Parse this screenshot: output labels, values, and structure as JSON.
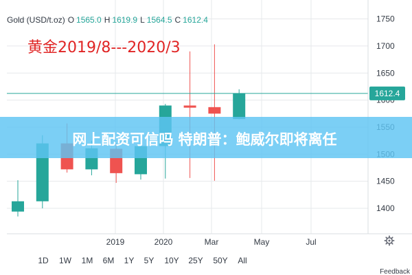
{
  "chart_data": {
    "type": "candlestick",
    "symbol": "Gold (USD/t.oz)",
    "ohlc_legend": {
      "o_label": "O",
      "o_value": "1565.0",
      "h_label": "H",
      "h_value": "1619.9",
      "l_label": "L",
      "l_value": "1564.5",
      "c_label": "C",
      "c_value": "1612.4"
    },
    "annotation": "黄金2019/8---2020/3",
    "x_tick_labels": [
      "2019",
      "2020",
      "Mar",
      "May",
      "Jul"
    ],
    "y_ticks": [
      1400,
      1450,
      1500,
      1550,
      1600,
      1650,
      1700,
      1750
    ],
    "y_tick_labels": [
      "1400",
      "1450",
      "1500",
      "1550",
      "1600",
      "1650",
      "1700",
      "1750"
    ],
    "ylim": [
      1353,
      1785
    ],
    "last_price": 1612.4,
    "last_price_label": "1612.4",
    "candles": [
      {
        "open": 1394,
        "high": 1452,
        "low": 1385,
        "close": 1413
      },
      {
        "open": 1413,
        "high": 1535,
        "low": 1400,
        "close": 1520
      },
      {
        "open": 1520,
        "high": 1557,
        "low": 1466,
        "close": 1472
      },
      {
        "open": 1472,
        "high": 1525,
        "low": 1461,
        "close": 1511
      },
      {
        "open": 1510,
        "high": 1520,
        "low": 1447,
        "close": 1465
      },
      {
        "open": 1463,
        "high": 1530,
        "low": 1453,
        "close": 1515
      },
      {
        "open": 1515,
        "high": 1593,
        "low": 1455,
        "close": 1590
      },
      {
        "open": 1590,
        "high": 1690,
        "low": 1456,
        "close": 1586
      },
      {
        "open": 1587,
        "high": 1703,
        "low": 1451,
        "close": 1575
      },
      {
        "open": 1565,
        "high": 1620,
        "low": 1564.5,
        "close": 1612.4
      }
    ],
    "colors": {
      "up": "#26a69a",
      "down": "#ef5350",
      "price_line": "#26a69a"
    },
    "grid": true,
    "legend_position": "top-left"
  },
  "banner": {
    "text": "网上配资可信吗 特朗普：鲍威尔即将离任"
  },
  "range_buttons": [
    "1D",
    "1W",
    "1M",
    "6M",
    "1Y",
    "5Y",
    "10Y",
    "25Y",
    "50Y",
    "All"
  ],
  "settings_icon": "gear-icon",
  "feedback_label": "Feedback"
}
